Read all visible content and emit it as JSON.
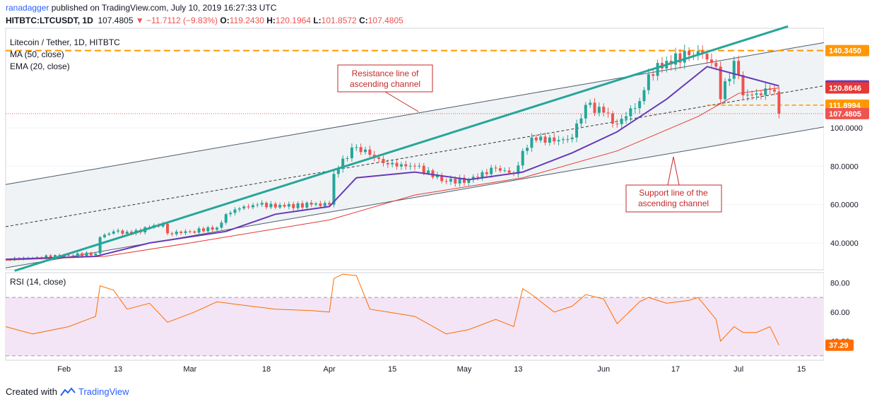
{
  "header": {
    "author": "ranadagger",
    "published_text": "published on TradingView.com, July 10, 2019 16:27:33 UTC",
    "symbol": "HITBTC:LTCUSDT, 1D",
    "last": "107.4805",
    "change": "−11.7112 (−9.83%)",
    "open_label": "O:",
    "open": "119.2430",
    "high_label": "H:",
    "high": "120.1964",
    "low_label": "L:",
    "low": "101.8572",
    "close_label": "C:",
    "close": "107.4805"
  },
  "legend": {
    "title": "Litecoin / Tether, 1D, HITBTC",
    "ma": "MA (50, close)",
    "ema": "EMA (20, close)",
    "rsi": "RSI (14, close)"
  },
  "annotations": {
    "resistance": [
      "Resistance line of",
      "ascending channel"
    ],
    "support": [
      "Support line of the",
      "ascending channel"
    ]
  },
  "footer": {
    "created_with": "Created with",
    "brand": "TradingView"
  },
  "colors": {
    "up": "#26a69a",
    "down": "#ef5350",
    "ma50": "#e53935",
    "ema20": "#673ab7",
    "trend": "#26a69a",
    "rsi": "#ff6d00",
    "rsi_band": "#f3e5f5",
    "level": "#ff9800",
    "channel": "#4b5a6a",
    "annotation": "#c62828"
  },
  "chart_data": [
    {
      "type": "candlestick",
      "title": "Litecoin / Tether, 1D, HITBTC",
      "ylim": [
        26,
        152
      ],
      "y_ticks": [
        40,
        60,
        80,
        100
      ],
      "y_tick_labels": [
        "40.0000",
        "60.0000",
        "80.0000",
        "100.0000"
      ],
      "x_tick_labels": [
        "Feb",
        "13",
        "Mar",
        "18",
        "Apr",
        "15",
        "May",
        "13",
        "Jun",
        "17",
        "Jul",
        "15"
      ],
      "x_range": [
        "2019-01-19",
        "2019-07-20"
      ],
      "price_labels": [
        {
          "text": "140.3450",
          "value": 140.345,
          "color": "#ff9800"
        },
        {
          "text": "121.9474",
          "value": 121.9474,
          "color": "#673ab7"
        },
        {
          "text": "120.8646",
          "value": 120.8646,
          "color": "#e53935"
        },
        {
          "text": "111.8994",
          "value": 111.8994,
          "color": "#ff9800"
        },
        {
          "text": "107.4805",
          "value": 107.4805,
          "color": "#ef5350"
        }
      ],
      "horizontal_levels": [
        {
          "value": 140.345,
          "style": "dashed"
        },
        {
          "value": 111.8994,
          "style": "dashed-from-jun"
        },
        {
          "value": 107.4805,
          "style": "dotted"
        }
      ],
      "channel": {
        "resistance": [
          [
            "2019-01-19",
            70.5
          ],
          [
            "2019-07-20",
            144.5
          ]
        ],
        "midline": [
          [
            "2019-01-19",
            48.5
          ],
          [
            "2019-07-20",
            122
          ]
        ],
        "support": [
          [
            "2019-01-19",
            27
          ],
          [
            "2019-07-20",
            100.5
          ]
        ],
        "trendline": [
          [
            "2019-01-21",
            25.5
          ],
          [
            "2019-07-12",
            153
          ]
        ]
      },
      "close_series": [
        [
          "2019-01-19",
          31.5
        ],
        [
          "2019-01-26",
          32.5
        ],
        [
          "2019-02-02",
          33.5
        ],
        [
          "2019-02-08",
          34.5
        ],
        [
          "2019-02-09",
          43
        ],
        [
          "2019-02-12",
          46
        ],
        [
          "2019-02-16",
          45
        ],
        [
          "2019-02-20",
          48
        ],
        [
          "2019-02-23",
          50
        ],
        [
          "2019-02-24",
          45
        ],
        [
          "2019-03-01",
          46
        ],
        [
          "2019-03-07",
          48
        ],
        [
          "2019-03-09",
          55
        ],
        [
          "2019-03-12",
          58
        ],
        [
          "2019-03-16",
          60
        ],
        [
          "2019-03-22",
          59
        ],
        [
          "2019-03-28",
          60
        ],
        [
          "2019-04-01",
          60
        ],
        [
          "2019-04-02",
          76
        ],
        [
          "2019-04-04",
          84
        ],
        [
          "2019-04-07",
          90
        ],
        [
          "2019-04-10",
          86
        ],
        [
          "2019-04-14",
          81
        ],
        [
          "2019-04-20",
          80
        ],
        [
          "2019-04-27",
          72
        ],
        [
          "2019-05-02",
          73
        ],
        [
          "2019-05-08",
          79
        ],
        [
          "2019-05-12",
          76
        ],
        [
          "2019-05-14",
          88
        ],
        [
          "2019-05-16",
          95
        ],
        [
          "2019-05-21",
          93
        ],
        [
          "2019-05-25",
          95
        ],
        [
          "2019-05-28",
          112
        ],
        [
          "2019-06-01",
          108
        ],
        [
          "2019-06-04",
          102
        ],
        [
          "2019-06-09",
          114
        ],
        [
          "2019-06-11",
          128
        ],
        [
          "2019-06-15",
          135
        ],
        [
          "2019-06-20",
          138
        ],
        [
          "2019-06-22",
          140
        ],
        [
          "2019-06-26",
          132
        ],
        [
          "2019-06-27",
          115
        ],
        [
          "2019-06-30",
          135
        ],
        [
          "2019-07-02",
          117
        ],
        [
          "2019-07-05",
          118
        ],
        [
          "2019-07-08",
          120
        ],
        [
          "2019-07-09",
          119
        ],
        [
          "2019-07-10",
          107.48
        ]
      ],
      "ema20": [
        [
          "2019-01-19",
          31.5
        ],
        [
          "2019-02-08",
          33
        ],
        [
          "2019-02-20",
          40
        ],
        [
          "2019-03-09",
          46
        ],
        [
          "2019-03-20",
          55
        ],
        [
          "2019-04-01",
          59
        ],
        [
          "2019-04-07",
          74
        ],
        [
          "2019-04-20",
          77
        ],
        [
          "2019-05-02",
          73
        ],
        [
          "2019-05-14",
          77
        ],
        [
          "2019-05-25",
          87
        ],
        [
          "2019-06-04",
          98
        ],
        [
          "2019-06-15",
          115
        ],
        [
          "2019-06-24",
          132
        ],
        [
          "2019-07-02",
          127
        ],
        [
          "2019-07-10",
          121.95
        ]
      ],
      "ma50": [
        [
          "2019-01-19",
          31
        ],
        [
          "2019-02-10",
          33
        ],
        [
          "2019-03-01",
          40
        ],
        [
          "2019-04-01",
          52
        ],
        [
          "2019-04-20",
          65
        ],
        [
          "2019-05-14",
          74
        ],
        [
          "2019-06-04",
          88
        ],
        [
          "2019-06-22",
          106
        ],
        [
          "2019-07-01",
          118
        ],
        [
          "2019-07-10",
          120.86
        ]
      ]
    },
    {
      "type": "line",
      "title": "RSI (14, close)",
      "ylim": [
        27,
        87
      ],
      "y_ticks": [
        40,
        60,
        80
      ],
      "y_tick_labels": [
        "40.00",
        "60.00",
        "80.00"
      ],
      "band": [
        30,
        70
      ],
      "last_label": "37.29",
      "values": [
        [
          "2019-01-19",
          50
        ],
        [
          "2019-01-25",
          45
        ],
        [
          "2019-02-02",
          50
        ],
        [
          "2019-02-08",
          57
        ],
        [
          "2019-02-09",
          78
        ],
        [
          "2019-02-12",
          75
        ],
        [
          "2019-02-15",
          62
        ],
        [
          "2019-02-20",
          66
        ],
        [
          "2019-02-24",
          53
        ],
        [
          "2019-03-02",
          60
        ],
        [
          "2019-03-07",
          67
        ],
        [
          "2019-03-12",
          65
        ],
        [
          "2019-03-20",
          62
        ],
        [
          "2019-03-28",
          61
        ],
        [
          "2019-04-01",
          60
        ],
        [
          "2019-04-02",
          83
        ],
        [
          "2019-04-04",
          86
        ],
        [
          "2019-04-07",
          85
        ],
        [
          "2019-04-10",
          62
        ],
        [
          "2019-04-14",
          60
        ],
        [
          "2019-04-20",
          57
        ],
        [
          "2019-04-27",
          45
        ],
        [
          "2019-05-02",
          48
        ],
        [
          "2019-05-08",
          55
        ],
        [
          "2019-05-12",
          50
        ],
        [
          "2019-05-14",
          76
        ],
        [
          "2019-05-16",
          72
        ],
        [
          "2019-05-21",
          60
        ],
        [
          "2019-05-25",
          64
        ],
        [
          "2019-05-28",
          72
        ],
        [
          "2019-06-01",
          69
        ],
        [
          "2019-06-04",
          52
        ],
        [
          "2019-06-09",
          67
        ],
        [
          "2019-06-11",
          70
        ],
        [
          "2019-06-15",
          66
        ],
        [
          "2019-06-20",
          68
        ],
        [
          "2019-06-22",
          70
        ],
        [
          "2019-06-26",
          55
        ],
        [
          "2019-06-27",
          40
        ],
        [
          "2019-06-30",
          50
        ],
        [
          "2019-07-02",
          46
        ],
        [
          "2019-07-05",
          46
        ],
        [
          "2019-07-08",
          50
        ],
        [
          "2019-07-10",
          37.29
        ]
      ]
    }
  ]
}
